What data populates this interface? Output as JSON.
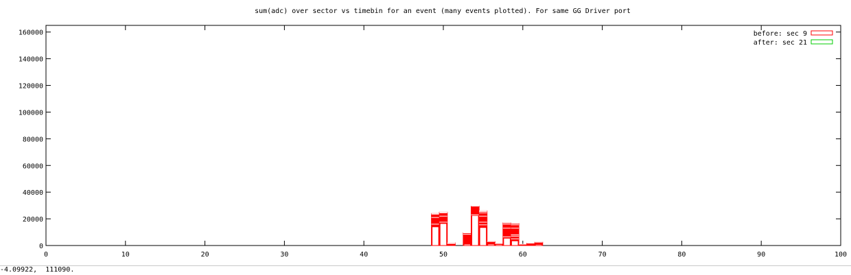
{
  "status_readout": "-4.09922,  111090.",
  "chart_data": {
    "type": "bar",
    "title": "sum(adc) over sector vs timebin for an event (many events plotted).  For same GG Driver port",
    "xlabel": "",
    "ylabel": "",
    "xlim": [
      0,
      100
    ],
    "ylim": [
      0,
      165000
    ],
    "x_ticks": [
      0,
      10,
      20,
      30,
      40,
      50,
      60,
      70,
      80,
      90,
      100
    ],
    "y_ticks": [
      0,
      20000,
      40000,
      60000,
      80000,
      100000,
      120000,
      140000,
      160000
    ],
    "grid": false,
    "legend_position": "top-right",
    "bar_width": 1,
    "series": [
      {
        "name": "before: sec 9",
        "color": "#ff0000",
        "bars": [
          {
            "x": 49,
            "events": [
              14000,
              16000,
              21000,
              23500,
              24000
            ]
          },
          {
            "x": 50,
            "events": [
              16500,
              17500,
              22000,
              24500,
              25000
            ]
          },
          {
            "x": 51,
            "events": [
              500,
              1500,
              2000
            ]
          },
          {
            "x": 53,
            "events": [
              1000,
              8500,
              9500
            ]
          },
          {
            "x": 54,
            "events": [
              22500,
              23000,
              29500
            ]
          },
          {
            "x": 55,
            "events": [
              13500,
              15500,
              17500,
              22000,
              24500,
              25500,
              26000
            ]
          },
          {
            "x": 56,
            "events": [
              1000,
              3000
            ]
          },
          {
            "x": 57,
            "events": [
              800,
              1500
            ]
          },
          {
            "x": 58,
            "events": [
              5500,
              6500,
              13000,
              16000,
              17000
            ]
          },
          {
            "x": 59,
            "events": [
              3500,
              5000,
              7000,
              8000,
              13000,
              15500,
              16500
            ]
          },
          {
            "x": 60,
            "events": [
              400,
              1000
            ]
          },
          {
            "x": 61,
            "events": [
              500,
              1800
            ]
          },
          {
            "x": 62,
            "events": [
              800,
              2500
            ]
          }
        ]
      },
      {
        "name": "after: sec 21",
        "color": "#00cc00",
        "bars": []
      }
    ]
  }
}
